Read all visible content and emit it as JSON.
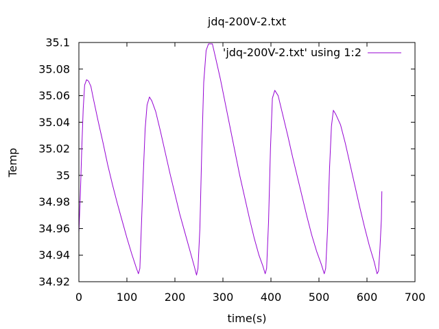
{
  "chart_data": {
    "type": "line",
    "title": "jdq-200V-2.txt",
    "xlabel": "time(s)",
    "ylabel": "Temp",
    "xlim": [
      0,
      700
    ],
    "ylim": [
      34.92,
      35.1
    ],
    "x_ticks": [
      0,
      100,
      200,
      300,
      400,
      500,
      600,
      700
    ],
    "y_ticks": [
      34.92,
      34.94,
      34.96,
      34.98,
      35,
      35.02,
      35.04,
      35.06,
      35.08,
      35.1
    ],
    "x_tick_labels": [
      "0",
      "100",
      "200",
      "300",
      "400",
      "500",
      "600",
      "700"
    ],
    "y_tick_labels": [
      "34.92",
      "34.94",
      "34.96",
      "34.98",
      "35",
      "35.02",
      "35.04",
      "35.06",
      "35.08",
      "35.1"
    ],
    "grid": false,
    "legend_position": "top-right",
    "series": [
      {
        "name": "'jdq-200V-2.txt' using 1:2",
        "color": "#9400d3",
        "points": [
          [
            0,
            34.957
          ],
          [
            3,
            34.985
          ],
          [
            6,
            35.02
          ],
          [
            9,
            35.05
          ],
          [
            12,
            35.068
          ],
          [
            16,
            35.072
          ],
          [
            20,
            35.071
          ],
          [
            25,
            35.067
          ],
          [
            30,
            35.058
          ],
          [
            40,
            35.041
          ],
          [
            50,
            35.025
          ],
          [
            60,
            35.008
          ],
          [
            70,
            34.993
          ],
          [
            80,
            34.979
          ],
          [
            90,
            34.966
          ],
          [
            100,
            34.953
          ],
          [
            110,
            34.941
          ],
          [
            120,
            34.93
          ],
          [
            124,
            34.926
          ],
          [
            127,
            34.93
          ],
          [
            130,
            34.96
          ],
          [
            134,
            35.0
          ],
          [
            138,
            35.035
          ],
          [
            142,
            35.053
          ],
          [
            147,
            35.059
          ],
          [
            152,
            35.056
          ],
          [
            160,
            35.048
          ],
          [
            170,
            35.033
          ],
          [
            180,
            35.017
          ],
          [
            190,
            35.001
          ],
          [
            200,
            34.986
          ],
          [
            210,
            34.971
          ],
          [
            220,
            34.958
          ],
          [
            230,
            34.945
          ],
          [
            240,
            34.932
          ],
          [
            245,
            34.925
          ],
          [
            248,
            34.93
          ],
          [
            252,
            34.96
          ],
          [
            256,
            35.02
          ],
          [
            260,
            35.07
          ],
          [
            265,
            35.094
          ],
          [
            270,
            35.099
          ],
          [
            278,
            35.099
          ],
          [
            285,
            35.088
          ],
          [
            295,
            35.072
          ],
          [
            305,
            35.054
          ],
          [
            315,
            35.036
          ],
          [
            325,
            35.018
          ],
          [
            335,
            35.0
          ],
          [
            345,
            34.984
          ],
          [
            355,
            34.968
          ],
          [
            365,
            34.953
          ],
          [
            375,
            34.94
          ],
          [
            383,
            34.932
          ],
          [
            388,
            34.926
          ],
          [
            391,
            34.93
          ],
          [
            395,
            34.965
          ],
          [
            399,
            35.02
          ],
          [
            403,
            35.058
          ],
          [
            408,
            35.064
          ],
          [
            415,
            35.06
          ],
          [
            425,
            35.045
          ],
          [
            435,
            35.03
          ],
          [
            445,
            35.014
          ],
          [
            455,
            34.999
          ],
          [
            465,
            34.984
          ],
          [
            475,
            34.969
          ],
          [
            485,
            34.955
          ],
          [
            495,
            34.943
          ],
          [
            505,
            34.933
          ],
          [
            511,
            34.926
          ],
          [
            514,
            34.93
          ],
          [
            518,
            34.96
          ],
          [
            522,
            35.005
          ],
          [
            526,
            35.037
          ],
          [
            530,
            35.049
          ],
          [
            535,
            35.046
          ],
          [
            545,
            35.038
          ],
          [
            555,
            35.024
          ],
          [
            565,
            35.008
          ],
          [
            575,
            34.992
          ],
          [
            585,
            34.976
          ],
          [
            595,
            34.961
          ],
          [
            605,
            34.947
          ],
          [
            615,
            34.935
          ],
          [
            621,
            34.926
          ],
          [
            624,
            34.928
          ],
          [
            627,
            34.945
          ],
          [
            630,
            34.967
          ],
          [
            631,
            34.988
          ]
        ]
      }
    ]
  }
}
